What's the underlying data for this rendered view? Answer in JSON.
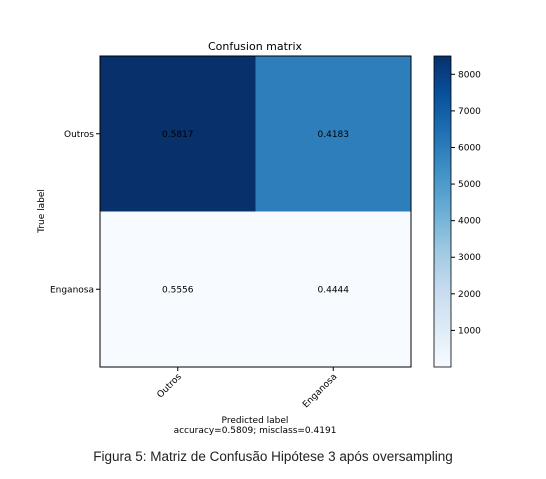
{
  "chart_data": {
    "type": "heatmap",
    "title": "Confusion matrix",
    "xlabel": "Predicted label",
    "ylabel": "True label",
    "x_categories": [
      "Outros",
      "Enganosa"
    ],
    "y_categories": [
      "Outros",
      "Enganosa"
    ],
    "values": [
      [
        0.5817,
        0.4183
      ],
      [
        0.5556,
        0.4444
      ]
    ],
    "value_labels": [
      [
        "0.5817",
        "0.4183"
      ],
      [
        "0.5556",
        "0.4444"
      ]
    ],
    "cell_colors": [
      [
        "#08306b",
        "#2e7ebc"
      ],
      [
        "#f7fbff",
        "#f7fbff"
      ]
    ],
    "subtitle": "accuracy=0.5809; misclass=0.4191",
    "colorbar": {
      "ticks": [
        1000,
        2000,
        3000,
        4000,
        5000,
        6000,
        7000,
        8000
      ],
      "range": [
        0,
        8500
      ],
      "colormap": "Blues",
      "colors": [
        "#f7fbff",
        "#deebf7",
        "#c6dbef",
        "#9ecae1",
        "#6baed6",
        "#4292c6",
        "#2171b5",
        "#08519c",
        "#08306b"
      ]
    }
  },
  "caption": "Figura 5: Matriz de Confusão Hipótese 3 após oversampling"
}
